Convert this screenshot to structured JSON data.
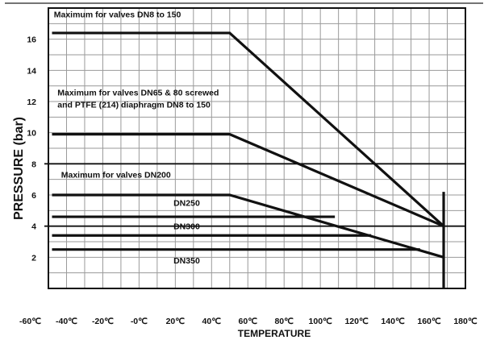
{
  "chart_data": {
    "type": "line",
    "xlabel": "TEMPERATURE",
    "ylabel": "PRESSURE (bar)",
    "xlim": [
      -50,
      180
    ],
    "ylim": [
      0,
      18
    ],
    "grid": true,
    "x_ticks": [
      -60,
      -40,
      -20,
      0,
      20,
      40,
      60,
      80,
      100,
      120,
      140,
      160,
      180
    ],
    "x_tick_labels": [
      "-60℃",
      "-40℃",
      "-20℃",
      "-0℃",
      "20℃",
      "40℃",
      "60℃",
      "80℃",
      "100℃",
      "120℃",
      "140℃",
      "160℃",
      "180℃"
    ],
    "y_ticks": [
      2,
      4,
      6,
      8,
      10,
      12,
      14,
      16
    ],
    "y_tick_labels": [
      "2",
      "4",
      "6",
      "8",
      "10",
      "12",
      "14",
      "16"
    ],
    "reference_lines": [
      8,
      4
    ],
    "series": [
      {
        "x": [
          -48,
          50,
          168
        ],
        "y": [
          16.4,
          16.4,
          4
        ]
      },
      {
        "x": [
          -48,
          50,
          168
        ],
        "y": [
          9.9,
          9.9,
          4
        ]
      },
      {
        "x": [
          -48,
          50,
          168
        ],
        "y": [
          6,
          6,
          2
        ]
      },
      {
        "x": [
          -48,
          108
        ],
        "y": [
          4.6,
          4.6
        ]
      },
      {
        "x": [
          -48,
          128
        ],
        "y": [
          3.4,
          3.4
        ]
      },
      {
        "x": [
          -48,
          155
        ],
        "y": [
          2.5,
          2.5
        ]
      }
    ],
    "limit_line": {
      "x": 168,
      "y": [
        0,
        6.2
      ]
    },
    "annotations": [
      {
        "lines": [
          "Maximum for valves DN8 to 150"
        ],
        "x": -47,
        "y": 17.4
      },
      {
        "lines": [
          "Maximum for valves DN65 & 80 screwed",
          "and PTFE (214) diaphragm DN8 to 150"
        ],
        "x": -45,
        "y": 12.4
      },
      {
        "lines": [
          "Maximum for valves DN200"
        ],
        "x": -43,
        "y": 7.1
      },
      {
        "lines": [
          "DN250"
        ],
        "x": 19,
        "y": 5.3
      },
      {
        "lines": [
          "DN300"
        ],
        "x": 19,
        "y": 3.8
      },
      {
        "lines": [
          "DN350"
        ],
        "x": 19,
        "y": 1.6
      }
    ]
  }
}
